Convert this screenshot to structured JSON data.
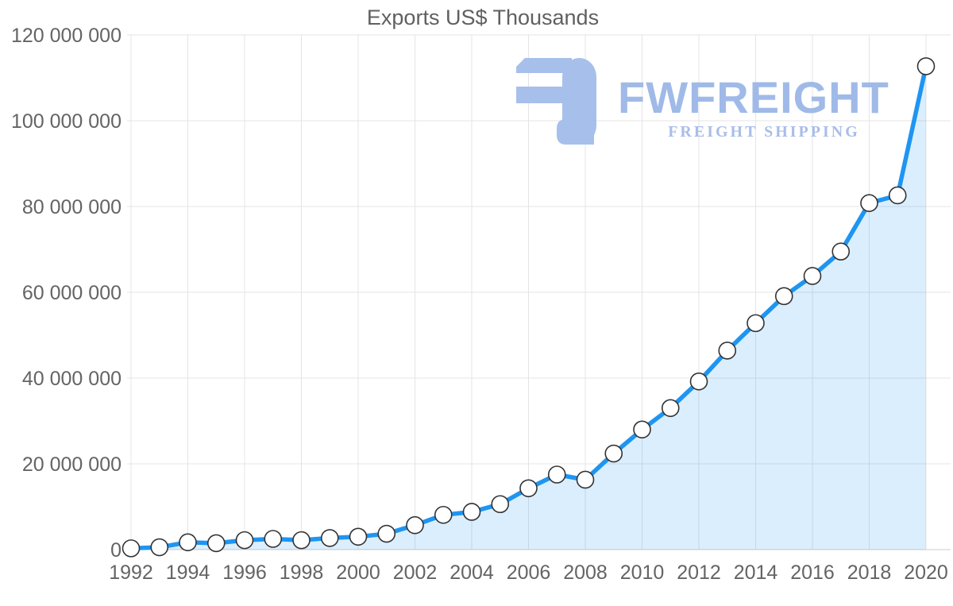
{
  "title": "Exports US$ Thousands",
  "watermark": {
    "brand": "FWFREIGHT",
    "tagline": "FREIGHT SHIPPING",
    "icon": "fwfreight-logo-icon",
    "icon_color": "#a6c0eb",
    "brand_color": "#a0bae8",
    "tagline_color": "#a8bde9"
  },
  "chart_data": {
    "type": "area",
    "title": "Exports US$ Thousands",
    "x": [
      1992,
      1993,
      1994,
      1995,
      1996,
      1997,
      1998,
      1999,
      2000,
      2001,
      2002,
      2003,
      2004,
      2005,
      2006,
      2007,
      2008,
      2009,
      2010,
      2011,
      2012,
      2013,
      2014,
      2015,
      2016,
      2017,
      2018,
      2019,
      2020
    ],
    "values": [
      300000,
      550000,
      1700000,
      1500000,
      2200000,
      2500000,
      2200000,
      2700000,
      3000000,
      3700000,
      5700000,
      8100000,
      8800000,
      10600000,
      14300000,
      17500000,
      16300000,
      22400000,
      28000000,
      33000000,
      39200000,
      46400000,
      52800000,
      59100000,
      63800000,
      69500000,
      80800000,
      82600000,
      112700000
    ],
    "ylim": [
      0,
      120000000
    ],
    "ytick_step": 20000000,
    "ytick_labels": [
      "0",
      "20 000 000",
      "40 000 000",
      "60 000 000",
      "80 000 000",
      "100 000 000",
      "120 000 000"
    ],
    "xtick_labels": [
      "1992",
      "1994",
      "1996",
      "1998",
      "2000",
      "2002",
      "2004",
      "2006",
      "2008",
      "2010",
      "2012",
      "2014",
      "2016",
      "2018",
      "2020"
    ],
    "xtick_step": 2,
    "grid": true,
    "legend": "none",
    "line_color": "#1f95f2",
    "line_width": 5.5,
    "fill_color": "rgba(33,150,243,0.16)",
    "marker": {
      "shape": "circle",
      "fill": "#ffffff",
      "stroke": "#333333",
      "radius": 10.5
    },
    "grid_color": "#e4e4e4",
    "baseline_color": "#cccccc",
    "axis_label_color": "#646464",
    "axis_font_size": 25
  }
}
